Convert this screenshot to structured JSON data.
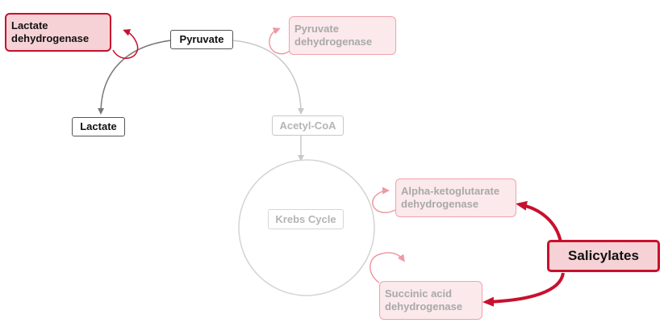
{
  "nodes": {
    "lactate_dehydrogenase": "Lactate dehydrogenase",
    "pyruvate": "Pyruvate",
    "pyruvate_dehydrogenase": "Pyruvate dehydrogenase",
    "lactate": "Lactate",
    "acetyl_coa": "Acetyl-CoA",
    "krebs_cycle": "Krebs Cycle",
    "alpha_ketoglutarate_dehydrogenase": "Alpha-ketoglutarate dehydrogenase",
    "succinic_acid_dehydrogenase": "Succinic acid dehydrogenase",
    "salicylates": "Salicylates"
  },
  "colors": {
    "inhibitor_red": "#c8102e",
    "active_line": "#777777",
    "faded_line": "#c8c8c8",
    "faded_red": "#ee9aa3"
  }
}
